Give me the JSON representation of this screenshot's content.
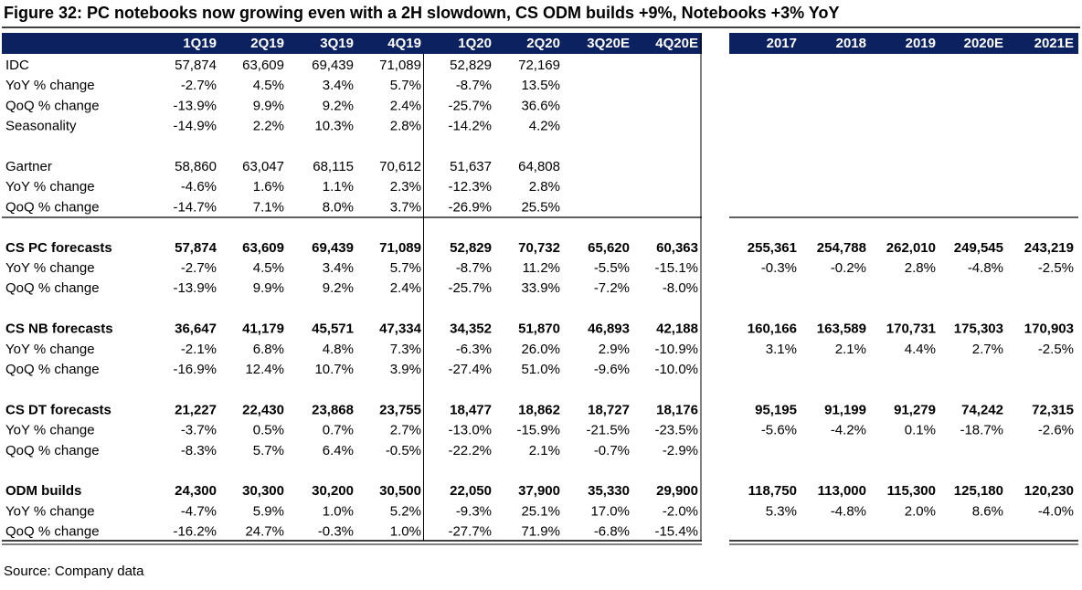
{
  "title": "Figure 32: PC notebooks now growing even with a 2H slowdown, CS ODM builds +9%, Notebooks +3% YoY",
  "table": {
    "quarter_columns": [
      "1Q19",
      "2Q19",
      "3Q19",
      "4Q19",
      "1Q20",
      "2Q20",
      "3Q20E",
      "4Q20E"
    ],
    "annual_columns": [
      "2017",
      "2018",
      "2019",
      "2020E",
      "2021E"
    ],
    "groups": [
      [
        {
          "label": "IDC",
          "quarters": [
            "57,874",
            "63,609",
            "69,439",
            "71,089",
            "52,829",
            "72,169"
          ]
        },
        {
          "label": "YoY % change",
          "quarters": [
            "-2.7%",
            "4.5%",
            "3.4%",
            "5.7%",
            "-8.7%",
            "13.5%"
          ]
        },
        {
          "label": "QoQ % change",
          "quarters": [
            "-13.9%",
            "9.9%",
            "9.2%",
            "2.4%",
            "-25.7%",
            "36.6%"
          ]
        },
        {
          "label": "Seasonality",
          "quarters": [
            "-14.9%",
            "2.2%",
            "10.3%",
            "2.8%",
            "-14.2%",
            "4.2%"
          ]
        }
      ],
      [
        {
          "label": "Gartner",
          "quarters": [
            "58,860",
            "63,047",
            "68,115",
            "70,612",
            "51,637",
            "64,808"
          ]
        },
        {
          "label": "YoY % change",
          "quarters": [
            "-4.6%",
            "1.6%",
            "1.1%",
            "2.3%",
            "-12.3%",
            "2.8%"
          ]
        },
        {
          "label": "QoQ % change",
          "quarters": [
            "-14.7%",
            "7.1%",
            "8.0%",
            "3.7%",
            "-26.9%",
            "25.5%"
          ]
        }
      ],
      [
        {
          "label": "CS PC forecasts",
          "bold": true,
          "quarters": [
            "57,874",
            "63,609",
            "69,439",
            "71,089",
            "52,829",
            "70,732",
            "65,620",
            "60,363"
          ],
          "annual": [
            "255,361",
            "254,788",
            "262,010",
            "249,545",
            "243,219"
          ]
        },
        {
          "label": "YoY % change",
          "quarters": [
            "-2.7%",
            "4.5%",
            "3.4%",
            "5.7%",
            "-8.7%",
            "11.2%",
            "-5.5%",
            "-15.1%"
          ],
          "annual": [
            "-0.3%",
            "-0.2%",
            "2.8%",
            "-4.8%",
            "-2.5%"
          ]
        },
        {
          "label": "QoQ % change",
          "quarters": [
            "-13.9%",
            "9.9%",
            "9.2%",
            "2.4%",
            "-25.7%",
            "33.9%",
            "-7.2%",
            "-8.0%"
          ]
        }
      ],
      [
        {
          "label": "CS NB forecasts",
          "bold": true,
          "quarters": [
            "36,647",
            "41,179",
            "45,571",
            "47,334",
            "34,352",
            "51,870",
            "46,893",
            "42,188"
          ],
          "annual": [
            "160,166",
            "163,589",
            "170,731",
            "175,303",
            "170,903"
          ]
        },
        {
          "label": "YoY % change",
          "quarters": [
            "-2.1%",
            "6.8%",
            "4.8%",
            "7.3%",
            "-6.3%",
            "26.0%",
            "2.9%",
            "-10.9%"
          ],
          "annual": [
            "3.1%",
            "2.1%",
            "4.4%",
            "2.7%",
            "-2.5%"
          ]
        },
        {
          "label": "QoQ % change",
          "quarters": [
            "-16.9%",
            "12.4%",
            "10.7%",
            "3.9%",
            "-27.4%",
            "51.0%",
            "-9.6%",
            "-10.0%"
          ]
        }
      ],
      [
        {
          "label": "CS DT forecasts",
          "bold": true,
          "quarters": [
            "21,227",
            "22,430",
            "23,868",
            "23,755",
            "18,477",
            "18,862",
            "18,727",
            "18,176"
          ],
          "annual": [
            "95,195",
            "91,199",
            "91,279",
            "74,242",
            "72,315"
          ]
        },
        {
          "label": "YoY % change",
          "quarters": [
            "-3.7%",
            "0.5%",
            "0.7%",
            "2.7%",
            "-13.0%",
            "-15.9%",
            "-21.5%",
            "-23.5%"
          ],
          "annual": [
            "-5.6%",
            "-4.2%",
            "0.1%",
            "-18.7%",
            "-2.6%"
          ]
        },
        {
          "label": "QoQ % change",
          "quarters": [
            "-8.3%",
            "5.7%",
            "6.4%",
            "-0.5%",
            "-22.2%",
            "2.1%",
            "-0.7%",
            "-2.9%"
          ]
        }
      ],
      [
        {
          "label": "ODM builds",
          "bold": true,
          "quarters": [
            "24,300",
            "30,300",
            "30,200",
            "30,500",
            "22,050",
            "37,900",
            "35,330",
            "29,900"
          ],
          "annual": [
            "118,750",
            "113,000",
            "115,300",
            "125,180",
            "120,230"
          ]
        },
        {
          "label": "YoY % change",
          "quarters": [
            "-4.7%",
            "5.9%",
            "1.0%",
            "5.2%",
            "-9.3%",
            "25.1%",
            "17.0%",
            "-2.0%"
          ],
          "annual": [
            "5.3%",
            "-4.8%",
            "2.0%",
            "8.6%",
            "-4.0%"
          ]
        },
        {
          "label": "QoQ % change",
          "quarters": [
            "-16.2%",
            "24.7%",
            "-0.3%",
            "1.0%",
            "-27.7%",
            "71.9%",
            "-6.8%",
            "-15.4%"
          ]
        }
      ]
    ]
  },
  "source": "Source: Company data"
}
